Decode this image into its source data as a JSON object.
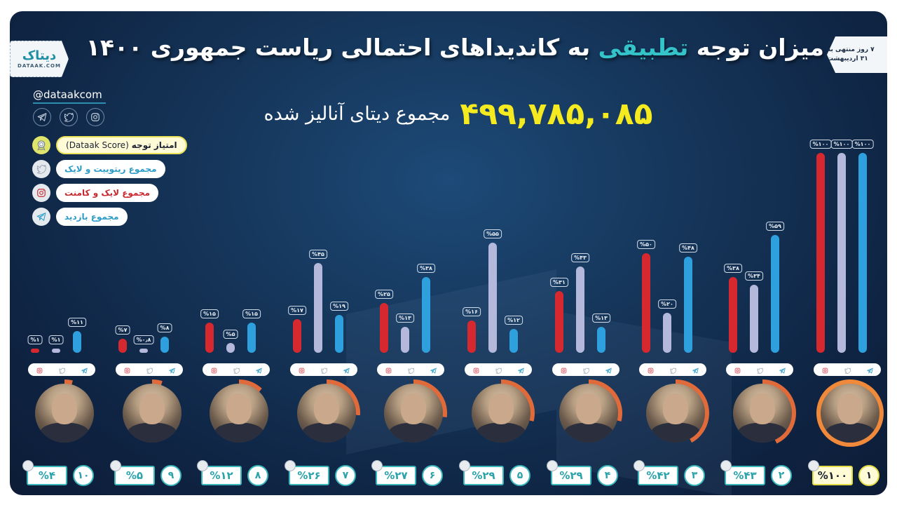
{
  "header": {
    "title_part1": "میزان توجه",
    "title_highlight": "تطبیقی",
    "title_part2": "به کاندیداهای احتمالی ریاست جمهوری ۱۴۰۰",
    "logo_fa": "دیتاک",
    "logo_en": "DATAAK.COM",
    "date_line1": "۷ روز منتهی به",
    "date_line2": "۳۱ اردیبهشت",
    "handle": "@dataakcom",
    "social_icons": [
      "telegram-icon",
      "twitter-icon",
      "instagram-icon"
    ]
  },
  "total": {
    "value": "۴۹۹,۷۸۵,۰۸۵",
    "label": "مجموع دیتای آنالیز شده"
  },
  "legend": [
    {
      "key": "score",
      "icon": "award-badge-icon",
      "label": "امتیاز توجه",
      "label_en": "(Dataak Score)"
    },
    {
      "key": "twitter",
      "icon": "twitter-icon",
      "label": "مجموع ریتوییت و لایک"
    },
    {
      "key": "instagram",
      "icon": "instagram-icon",
      "label": "مجموع لایک و کامنت"
    },
    {
      "key": "telegram",
      "icon": "telegram-icon",
      "label": "مجموع بازدید"
    }
  ],
  "colors": {
    "instagram": "#d6282f",
    "twitter": "#b4b8da",
    "telegram": "#2ea0dd",
    "accent": "#34c3c9",
    "total": "#f4ea1f",
    "first_place": "#e3dc45"
  },
  "chart_data": {
    "type": "bar",
    "title": "میزان توجه تطبیقی به کاندیداهای احتمالی ریاست جمهوری ۱۴۰۰",
    "subtitle": "۴۹۹,۷۸۵,۰۸۵ مجموع دیتای آنالیز شده",
    "xlabel": "",
    "ylabel": "%",
    "ylim": [
      0,
      100
    ],
    "grid": false,
    "legend_position": "left",
    "categories": [
      "Rank 10",
      "Rank 9",
      "Rank 8",
      "Rank 7",
      "Rank 6",
      "Rank 5",
      "Rank 4",
      "Rank 3",
      "Rank 2",
      "Rank 1"
    ],
    "rank_labels": [
      "۱۰",
      "۹",
      "۸",
      "۷",
      "۶",
      "۵",
      "۴",
      "۳",
      "۲",
      "۱"
    ],
    "series": [
      {
        "name": "مجموع لایک و کامنت (Instagram)",
        "values": [
          1,
          7,
          15,
          17,
          25,
          16,
          31,
          50,
          38,
          100
        ],
        "labels": [
          "%۱",
          "%۷",
          "%۱۵",
          "%۱۷",
          "%۲۵",
          "%۱۶",
          "%۳۱",
          "%۵۰",
          "%۳۸",
          "%۱۰۰"
        ]
      },
      {
        "name": "مجموع ریتوییت و لایک (Twitter)",
        "values": [
          1,
          0.8,
          5,
          45,
          13,
          55,
          43,
          20,
          34,
          100
        ],
        "labels": [
          "%۱",
          "%۰٫۸",
          "%۵",
          "%۴۵",
          "%۱۳",
          "%۵۵",
          "%۴۳",
          "%۲۰",
          "%۳۴",
          "%۱۰۰"
        ]
      },
      {
        "name": "مجموع بازدید (Telegram)",
        "values": [
          11,
          8,
          15,
          19,
          38,
          12,
          13,
          48,
          59,
          100
        ],
        "labels": [
          "%۱۱",
          "%۸",
          "%۱۵",
          "%۱۹",
          "%۳۸",
          "%۱۲",
          "%۱۳",
          "%۴۸",
          "%۵۹",
          "%۱۰۰"
        ]
      },
      {
        "name": "امتیاز توجه (Dataak Score)",
        "values": [
          4,
          5,
          12,
          26,
          27,
          29,
          29,
          42,
          43,
          100
        ],
        "labels": [
          "%۴",
          "%۵",
          "%۱۲",
          "%۲۶",
          "%۲۷",
          "%۲۹",
          "%۲۹",
          "%۴۲",
          "%۴۳",
          "%۱۰۰"
        ]
      }
    ]
  }
}
